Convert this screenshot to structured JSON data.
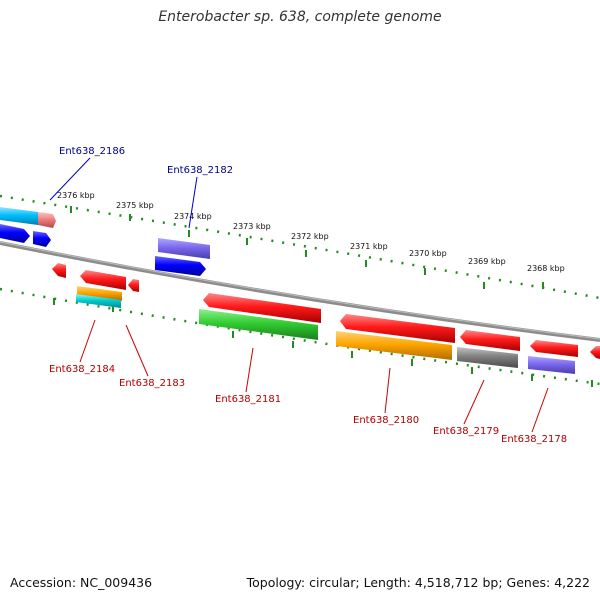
{
  "title": "Enterobacter sp. 638, complete genome",
  "footer": {
    "accession": "Accession: NC_009436",
    "topology": "Topology: circular; Length: 4,518,712 bp; Genes: 4,222"
  },
  "ticks": [
    "2376 kbp",
    "2375 kbp",
    "2374 kbp",
    "2373 kbp",
    "2372 kbp",
    "2371 kbp",
    "2370 kbp",
    "2369 kbp",
    "2368 kbp"
  ],
  "gene_labels": {
    "g2186": "Ent638_2186",
    "g2182": "Ent638_2182",
    "g2184": "Ent638_2184",
    "g2183": "Ent638_2183",
    "g2181": "Ent638_2181",
    "g2180": "Ent638_2180",
    "g2179": "Ent638_2179",
    "g2178": "Ent638_2178"
  },
  "colors": {
    "red": "#ff0000",
    "blue": "#0000ff",
    "slate": "#7b68ee",
    "green": "#32cd32",
    "orange": "#ffa500",
    "gray": "#808080",
    "cyan": "#00ced1",
    "deepskyblue": "#00bfff",
    "salmon": "#f08080",
    "backbone": "#8c8c8c",
    "ruler": "#228b22"
  }
}
